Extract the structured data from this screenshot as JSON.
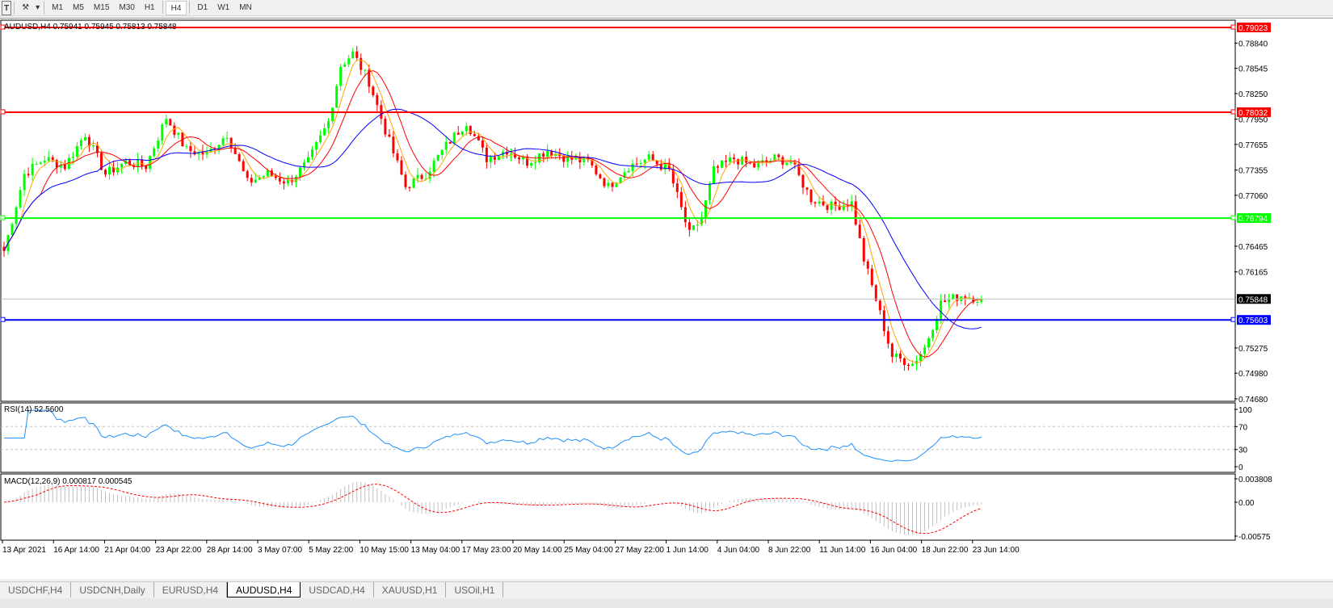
{
  "toolbar": {
    "icons": [
      "text-tool-icon",
      "draw-tools-icon",
      "dropdown-arrow-icon"
    ],
    "timeframes": [
      "M1",
      "M5",
      "M15",
      "M30",
      "H1",
      "H4",
      "D1",
      "W1",
      "MN"
    ],
    "active_timeframe": "H4"
  },
  "chart": {
    "header": "AUDUSD,H4  0.75941 0.75945 0.75813 0.75848",
    "price_ticks": [
      "0.78840",
      "0.78545",
      "0.78250",
      "0.77950",
      "0.77655",
      "0.77355",
      "0.77060",
      "0.76465",
      "0.76165",
      "0.75275",
      "0.74980",
      "0.74680"
    ],
    "levels": [
      {
        "price": "0.79023",
        "color": "#ff0000"
      },
      {
        "price": "0.78032",
        "color": "#ff0000"
      },
      {
        "price": "0.76794",
        "color": "#00ff00"
      },
      {
        "price": "0.75603",
        "color": "#0000ff"
      }
    ],
    "current_price": "0.75848",
    "date_labels": [
      "13 Apr 2021",
      "16 Apr 14:00",
      "21 Apr 04:00",
      "23 Apr 22:00",
      "28 Apr 14:00",
      "3 May 07:00",
      "5 May 22:00",
      "10 May 15:00",
      "13 May 04:00",
      "17 May 23:00",
      "20 May 14:00",
      "25 May 04:00",
      "27 May 22:00",
      "1 Jun 14:00",
      "4 Jun 04:00",
      "8 Jun 22:00",
      "11 Jun 14:00",
      "16 Jun 04:00",
      "18 Jun 22:00",
      "23 Jun 14:00"
    ],
    "colors": {
      "bull": "#00ff00",
      "bear": "#ff0000",
      "ma_fast": "#ffa500",
      "ma_mid": "#ff0000",
      "ma_slow": "#0000ff",
      "rsi": "#1e90ff",
      "macd_hist": "#c0c0c0",
      "macd_signal": "#ff0000"
    }
  },
  "rsi": {
    "label": "RSI(14) 52.5600",
    "ticks": [
      "100",
      "70",
      "30",
      "0"
    ]
  },
  "macd": {
    "label": "MACD(12,26,9) 0.000817 0.000545",
    "ticks": [
      "0.003808",
      "0.00",
      "-0.00575"
    ]
  },
  "tabs": [
    "USDCHF,H4",
    "USDCNH,Daily",
    "EURUSD,H4",
    "AUDUSD,H4",
    "USDCAD,H4",
    "XAUUSD,H1",
    "USOil,H1"
  ],
  "active_tab": "AUDUSD,H4",
  "chart_data": {
    "type": "candlestick",
    "symbol": "AUDUSD",
    "timeframe": "H4",
    "ylim": [
      0.7468,
      0.7902
    ],
    "close_keypoints": [
      [
        0,
        0.7641
      ],
      [
        5,
        0.7731
      ],
      [
        10,
        0.7749
      ],
      [
        15,
        0.774
      ],
      [
        20,
        0.7778
      ],
      [
        25,
        0.7731
      ],
      [
        30,
        0.7745
      ],
      [
        35,
        0.774
      ],
      [
        40,
        0.7797
      ],
      [
        45,
        0.7759
      ],
      [
        50,
        0.7754
      ],
      [
        55,
        0.7778
      ],
      [
        60,
        0.7721
      ],
      [
        65,
        0.7731
      ],
      [
        70,
        0.7721
      ],
      [
        75,
        0.7745
      ],
      [
        80,
        0.7792
      ],
      [
        83,
        0.7858
      ],
      [
        86,
        0.7872
      ],
      [
        90,
        0.7839
      ],
      [
        94,
        0.7782
      ],
      [
        99,
        0.7716
      ],
      [
        104,
        0.7731
      ],
      [
        109,
        0.7764
      ],
      [
        114,
        0.7792
      ],
      [
        119,
        0.7749
      ],
      [
        124,
        0.7759
      ],
      [
        129,
        0.7745
      ],
      [
        134,
        0.7759
      ],
      [
        139,
        0.7749
      ],
      [
        144,
        0.7745
      ],
      [
        149,
        0.7716
      ],
      [
        154,
        0.774
      ],
      [
        159,
        0.7749
      ],
      [
        164,
        0.7735
      ],
      [
        169,
        0.766
      ],
      [
        172,
        0.7679
      ],
      [
        175,
        0.7735
      ],
      [
        180,
        0.7749
      ],
      [
        185,
        0.774
      ],
      [
        190,
        0.7749
      ],
      [
        194,
        0.7745
      ],
      [
        199,
        0.7702
      ],
      [
        204,
        0.7693
      ],
      [
        209,
        0.7697
      ],
      [
        212,
        0.7631
      ],
      [
        215,
        0.7584
      ],
      [
        219,
        0.7518
      ],
      [
        224,
        0.7509
      ],
      [
        227,
        0.7528
      ],
      [
        231,
        0.758
      ],
      [
        236,
        0.7589
      ],
      [
        241,
        0.7585
      ]
    ]
  }
}
